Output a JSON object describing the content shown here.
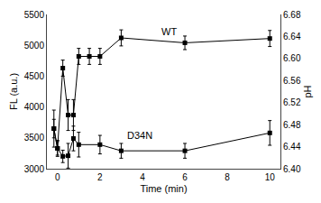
{
  "chart_data": {
    "type": "line",
    "x_label": "Time (min)",
    "y_label": "FL (a.u.)",
    "y2_label": "pH",
    "xlim": [
      -0.5,
      10.5
    ],
    "xticks": [
      0,
      2,
      4,
      6,
      8,
      10
    ],
    "ylim": [
      3000,
      5500
    ],
    "yticks": [
      3000,
      3500,
      4000,
      4500,
      5000,
      5500
    ],
    "y2lim": [
      6.4,
      6.68
    ],
    "y2ticks": [
      {
        "value": 6.4,
        "label": "6.40"
      },
      6.44,
      6.48,
      6.52,
      6.56,
      {
        "value": 6.6,
        "label": "6.60"
      },
      6.64,
      6.68
    ],
    "grid": false,
    "series": [
      {
        "color": "#000000",
        "marker": "square",
        "line_style": "solid",
        "x": [
          -0.17,
          0,
          0.25,
          0.5,
          0.75,
          1.0,
          1.5,
          2.0,
          3.0,
          6.0,
          10.0
        ],
        "values": [
          3650,
          3330,
          4630,
          3870,
          3870,
          4820,
          4820,
          4820,
          5120,
          5040,
          5110
        ],
        "error": [
          300,
          130,
          130,
          250,
          250,
          130,
          130,
          130,
          130,
          110,
          130
        ]
      },
      {
        "color": "#000000",
        "marker": "square",
        "line_style": "solid",
        "x": [
          -0.17,
          0,
          0.25,
          0.5,
          0.75,
          1.0,
          2.0,
          3.0,
          6.0,
          10.0
        ],
        "values": [
          3650,
          3330,
          3200,
          3210,
          3490,
          3390,
          3390,
          3290,
          3290,
          3580
        ],
        "error": [
          150,
          110,
          100,
          200,
          200,
          200,
          150,
          120,
          120,
          200
        ]
      }
    ],
    "annotations": [
      {
        "text": "WT",
        "x": 4.8,
        "y": 5100
      },
      {
        "text": "D34N",
        "x": 3.2,
        "y": 3430
      }
    ]
  }
}
